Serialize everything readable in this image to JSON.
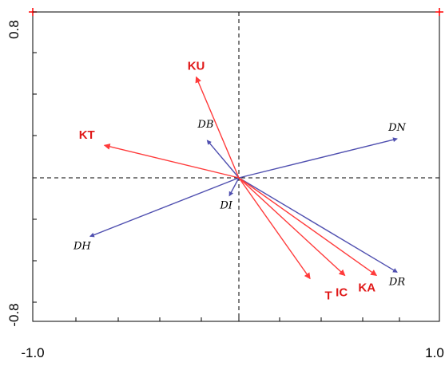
{
  "chart_data": {
    "type": "ordination-biplot",
    "title": "",
    "xlabel": "",
    "ylabel": "",
    "xlim": [
      -1.0,
      1.0
    ],
    "ylim": [
      -0.8,
      0.8
    ],
    "x_tick_labels": [
      "-1.0",
      "1.0"
    ],
    "y_tick_labels": [
      "0.8",
      "-0.8"
    ],
    "grid": false,
    "zero_lines": true,
    "colors": {
      "env_arrow": "#ff3b3b",
      "species_arrow": "#5050b0",
      "env_label": "#e01818",
      "frame": "#000000"
    },
    "env_arrows": [
      {
        "label": "KU",
        "x": -0.27,
        "y": 0.62
      },
      {
        "label": "KT",
        "x": -0.85,
        "y": 0.2
      },
      {
        "label": "T",
        "x": 0.45,
        "y": -0.62
      },
      {
        "label": "IC",
        "x": 0.67,
        "y": -0.6
      },
      {
        "label": "KA",
        "x": 0.87,
        "y": -0.6
      }
    ],
    "species_arrows": [
      {
        "label": "DB",
        "x": -0.2,
        "y": 0.23
      },
      {
        "label": "DN",
        "x": 1.0,
        "y": 0.24
      },
      {
        "label": "DI",
        "x": -0.06,
        "y": -0.11
      },
      {
        "label": "DH",
        "x": -0.94,
        "y": -0.36
      },
      {
        "label": "DR",
        "x": 1.0,
        "y": -0.58
      }
    ]
  }
}
